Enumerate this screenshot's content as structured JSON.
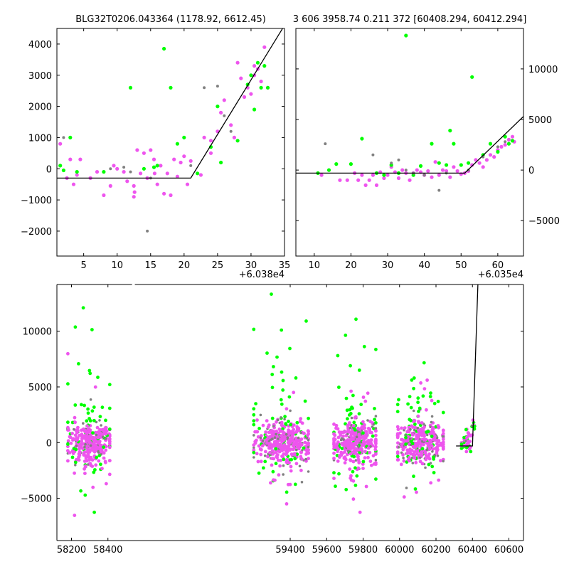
{
  "colors": {
    "green": "#00ff00",
    "magenta": "#ee55ee",
    "gray": "#808080",
    "model": "#000000"
  },
  "chart_data": [
    {
      "type": "scatter",
      "title": "BLG32T0206.043364 (1178.92, 6612.45)",
      "xlim": [
        1,
        35
      ],
      "ylim": [
        -2800,
        4500
      ],
      "xticks": [
        5,
        10,
        15,
        20,
        25,
        30,
        35
      ],
      "xtick_labels": [
        "5",
        "10",
        "15",
        "20",
        "25",
        "30",
        "35"
      ],
      "yticks": [
        -2000,
        -1000,
        0,
        1000,
        2000,
        3000,
        4000
      ],
      "ytick_labels": [
        "−2000",
        "−1000",
        "0",
        "1000",
        "2000",
        "3000",
        "4000"
      ],
      "y_axis_side": "left",
      "x_offset_label": "+6.038e4",
      "model_line": {
        "x": [
          1,
          21,
          35
        ],
        "y": [
          -300,
          -300,
          4600
        ]
      },
      "series": [
        {
          "color": "magenta",
          "points": [
            [
              1.5,
              800
            ],
            [
              2.5,
              -300
            ],
            [
              3,
              300
            ],
            [
              3.5,
              -500
            ],
            [
              4,
              -200
            ],
            [
              4.5,
              300
            ],
            [
              6,
              -300
            ],
            [
              7,
              -100
            ],
            [
              8,
              -850
            ],
            [
              9,
              -550
            ],
            [
              9.5,
              100
            ],
            [
              10,
              0
            ],
            [
              11,
              -100
            ],
            [
              11.5,
              -400
            ],
            [
              12.5,
              -550
            ],
            [
              12.5,
              -900
            ],
            [
              12.6,
              -750
            ],
            [
              13,
              600
            ],
            [
              13.5,
              -150
            ],
            [
              14,
              500
            ],
            [
              14.5,
              -300
            ],
            [
              15,
              600
            ],
            [
              15.5,
              300
            ],
            [
              15.6,
              -150
            ],
            [
              16,
              -500
            ],
            [
              16.5,
              100
            ],
            [
              17,
              -800
            ],
            [
              17.5,
              -150
            ],
            [
              18,
              -850
            ],
            [
              18.5,
              300
            ],
            [
              19,
              -250
            ],
            [
              19.5,
              200
            ],
            [
              20,
              400
            ],
            [
              20.5,
              -500
            ],
            [
              21,
              250
            ],
            [
              22.5,
              -200
            ],
            [
              23,
              1000
            ],
            [
              24,
              500
            ],
            [
              24,
              900
            ],
            [
              25,
              1200
            ],
            [
              25.5,
              1800
            ],
            [
              26,
              2200
            ],
            [
              27,
              1400
            ],
            [
              27.5,
              1000
            ],
            [
              28,
              3400
            ],
            [
              28.5,
              2900
            ],
            [
              29,
              2300
            ],
            [
              29.5,
              2600
            ],
            [
              30,
              2400
            ],
            [
              30.5,
              3000
            ],
            [
              30.5,
              3300
            ],
            [
              31,
              3200
            ],
            [
              31.5,
              2800
            ],
            [
              32,
              3900
            ],
            [
              32.5,
              2600
            ]
          ]
        },
        {
          "color": "green",
          "points": [
            [
              1.5,
              100
            ],
            [
              2,
              -50
            ],
            [
              3,
              1000
            ],
            [
              4,
              -100
            ],
            [
              8,
              -100
            ],
            [
              12,
              2600
            ],
            [
              14,
              0
            ],
            [
              15.5,
              50
            ],
            [
              16,
              100
            ],
            [
              17,
              3850
            ],
            [
              18,
              2600
            ],
            [
              19,
              800
            ],
            [
              20,
              1000
            ],
            [
              22,
              -150
            ],
            [
              24,
              700
            ],
            [
              25,
              2000
            ],
            [
              25.5,
              200
            ],
            [
              28,
              900
            ],
            [
              29.5,
              2700
            ],
            [
              30,
              3000
            ],
            [
              30.5,
              1900
            ],
            [
              31,
              3400
            ],
            [
              31.5,
              2600
            ],
            [
              32,
              3300
            ],
            [
              32.5,
              2600
            ]
          ]
        },
        {
          "color": "gray",
          "points": [
            [
              2,
              1000
            ],
            [
              9,
              0
            ],
            [
              11,
              50
            ],
            [
              12,
              -100
            ],
            [
              14.5,
              -2000
            ],
            [
              15,
              -300
            ],
            [
              21,
              100
            ],
            [
              23,
              2600
            ],
            [
              25,
              2650
            ],
            [
              26,
              1700
            ],
            [
              27,
              1200
            ]
          ]
        }
      ]
    },
    {
      "type": "scatter",
      "title": "3 606 3958.74 0.211 372 [60408.294, 60412.294]",
      "xlim": [
        5,
        67
      ],
      "ylim": [
        -8500,
        14000
      ],
      "xticks": [
        10,
        20,
        30,
        40,
        50,
        60
      ],
      "xtick_labels": [
        "10",
        "20",
        "30",
        "40",
        "50",
        "60"
      ],
      "yticks": [
        -5000,
        0,
        5000,
        10000
      ],
      "ytick_labels": [
        "−5000",
        "0",
        "5000",
        "10000"
      ],
      "y_axis_side": "right",
      "x_offset_label": "+6.035e4",
      "model_line": {
        "x": [
          5,
          51,
          67
        ],
        "y": [
          -300,
          -300,
          5300
        ]
      },
      "series": [
        {
          "color": "magenta",
          "points": [
            [
              12,
              -500
            ],
            [
              17,
              -1000
            ],
            [
              19,
              -1000
            ],
            [
              21,
              -300
            ],
            [
              22,
              -1000
            ],
            [
              23,
              -500
            ],
            [
              24,
              -1500
            ],
            [
              25,
              -1000
            ],
            [
              26,
              -500
            ],
            [
              27,
              -1500
            ],
            [
              28,
              -200
            ],
            [
              29,
              -800
            ],
            [
              30,
              -500
            ],
            [
              31,
              300
            ],
            [
              32,
              -200
            ],
            [
              33,
              -800
            ],
            [
              34,
              0
            ],
            [
              35,
              -300
            ],
            [
              36,
              -1000
            ],
            [
              37,
              -300
            ],
            [
              38,
              0
            ],
            [
              39,
              -200
            ],
            [
              40,
              -500
            ],
            [
              41,
              -100
            ],
            [
              42,
              -700
            ],
            [
              43,
              800
            ],
            [
              44,
              -500
            ],
            [
              45,
              0
            ],
            [
              46,
              -100
            ],
            [
              47,
              -700
            ],
            [
              48,
              300
            ],
            [
              49,
              -100
            ],
            [
              50,
              -400
            ],
            [
              51,
              -300
            ],
            [
              52,
              -100
            ],
            [
              53,
              500
            ],
            [
              54,
              1000
            ],
            [
              55,
              700
            ],
            [
              56,
              300
            ],
            [
              57,
              1000
            ],
            [
              58,
              1500
            ],
            [
              59,
              1300
            ],
            [
              60,
              2000
            ],
            [
              61,
              2300
            ],
            [
              62,
              2500
            ],
            [
              63,
              3000
            ],
            [
              64,
              3300
            ],
            [
              64.5,
              2800
            ]
          ]
        },
        {
          "color": "green",
          "points": [
            [
              11,
              -300
            ],
            [
              14,
              0
            ],
            [
              16,
              600
            ],
            [
              20,
              600
            ],
            [
              23,
              3100
            ],
            [
              27,
              -300
            ],
            [
              29,
              -500
            ],
            [
              31,
              500
            ],
            [
              33,
              -300
            ],
            [
              35,
              13300
            ],
            [
              37,
              -500
            ],
            [
              39,
              400
            ],
            [
              42,
              2600
            ],
            [
              44,
              700
            ],
            [
              46,
              500
            ],
            [
              47,
              3900
            ],
            [
              48,
              2600
            ],
            [
              50,
              500
            ],
            [
              52,
              700
            ],
            [
              53,
              9200
            ],
            [
              56,
              1500
            ],
            [
              58,
              2600
            ],
            [
              60,
              1800
            ],
            [
              62,
              3300
            ],
            [
              63,
              2600
            ],
            [
              64,
              2900
            ]
          ]
        },
        {
          "color": "gray",
          "points": [
            [
              13,
              2600
            ],
            [
              26,
              1500
            ],
            [
              31,
              700
            ],
            [
              33,
              1000
            ],
            [
              35,
              0
            ],
            [
              37,
              -300
            ],
            [
              40,
              -500
            ],
            [
              44,
              -2000
            ],
            [
              46,
              -300
            ],
            [
              52,
              0
            ],
            [
              56,
              1300
            ],
            [
              60,
              2300
            ],
            [
              62,
              2800
            ]
          ]
        }
      ]
    },
    {
      "type": "scatter",
      "title": "",
      "xlim": [
        58120,
        60680
      ],
      "ylim": [
        -8800,
        14200
      ],
      "xticks": [
        58200,
        58400,
        59400,
        59600,
        59800,
        60000,
        60200,
        60400,
        60600
      ],
      "xtick_labels": [
        "58200",
        "58400",
        "59400",
        "59600",
        "59800",
        "60000",
        "60200",
        "60400",
        "60600"
      ],
      "yticks": [
        -5000,
        0,
        5000,
        10000
      ],
      "ytick_labels": [
        "−5000",
        "0",
        "5000",
        "10000"
      ],
      "y_axis_side": "left",
      "x_offset_label": "",
      "axis_break_x": 58540,
      "model_line": {
        "x": [
          60310,
          60400,
          60430
        ],
        "y": [
          -300,
          -300,
          14200
        ]
      },
      "seasons": [
        {
          "x0": 58180,
          "x1": 58410,
          "n": 380,
          "magenta_frac": 0.7,
          "green_frac": 0.18
        },
        {
          "x0": 59200,
          "x1": 59500,
          "n": 450,
          "magenta_frac": 0.7,
          "green_frac": 0.18
        },
        {
          "x0": 59640,
          "x1": 59870,
          "n": 380,
          "magenta_frac": 0.7,
          "green_frac": 0.16
        },
        {
          "x0": 59990,
          "x1": 60240,
          "n": 380,
          "magenta_frac": 0.7,
          "green_frac": 0.17
        },
        {
          "x0": 60340,
          "x1": 60412,
          "n": 45,
          "magenta_frac": 0.7,
          "green_frac": 0.25
        }
      ]
    }
  ]
}
